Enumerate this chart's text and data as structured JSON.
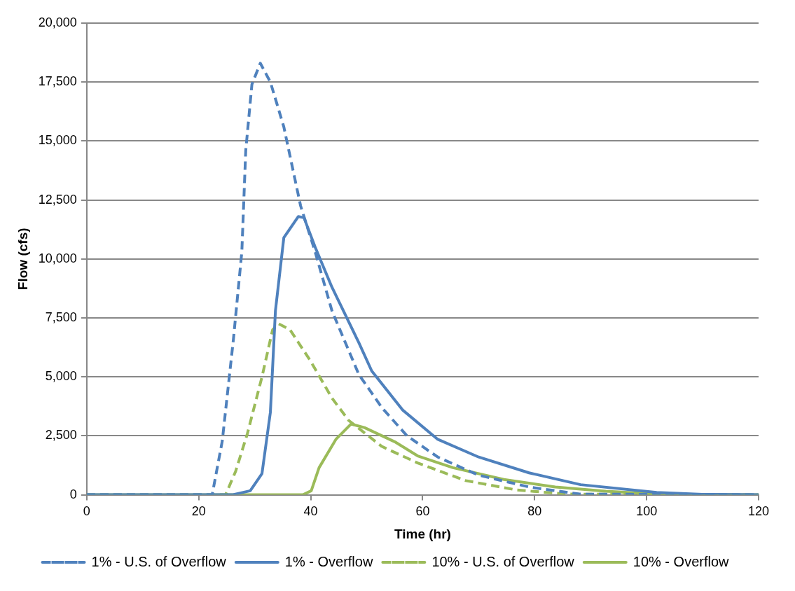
{
  "chart_data": {
    "type": "line",
    "xlabel": "Time (hr)",
    "ylabel": "Flow (cfs)",
    "xlim": [
      0,
      120
    ],
    "xticks": [
      0,
      20,
      40,
      60,
      80,
      100,
      120
    ],
    "ylim": [
      0,
      20000
    ],
    "yticks": [
      {
        "value": 0,
        "label": "0"
      },
      {
        "value": 2500,
        "label": "2,500"
      },
      {
        "value": 5000,
        "label": "5,000"
      },
      {
        "value": 7500,
        "label": "7,500"
      },
      {
        "value": 10000,
        "label": "10,000"
      },
      {
        "value": 12500,
        "label": "12,500"
      },
      {
        "value": 15000,
        "label": "15,000"
      },
      {
        "value": 17500,
        "label": "17,500"
      },
      {
        "value": 20000,
        "label": "20,000"
      }
    ],
    "grid": "y",
    "legend": "bottom",
    "marker": "none",
    "series": [
      {
        "name": "1% - U.S. of Overflow",
        "color": "#4f81bd",
        "line_style": "dashed",
        "x": [
          0,
          22.4,
          24.2,
          26.2,
          27.7,
          28.4,
          29.5,
          31,
          32.8,
          35.2,
          38.2,
          40.8,
          43.8,
          48.6,
          52.7,
          57.2,
          62.7,
          70,
          79,
          88,
          120
        ],
        "values": [
          0,
          0,
          2270,
          6600,
          10300,
          14600,
          17400,
          18300,
          17500,
          15600,
          12250,
          10300,
          7800,
          5100,
          3700,
          2500,
          1600,
          830,
          330,
          30,
          0
        ]
      },
      {
        "name": "1% - Overflow",
        "color": "#4f81bd",
        "line_style": "solid",
        "x": [
          0,
          26,
          29.2,
          31.3,
          32.8,
          33.7,
          35.2,
          37.8,
          38.8,
          40.8,
          43.8,
          48.6,
          50.9,
          56.4,
          62.7,
          70,
          79,
          88.2,
          101.8,
          110,
          120
        ],
        "values": [
          0,
          0,
          170,
          900,
          3500,
          7800,
          10900,
          11800,
          11750,
          10500,
          8800,
          6450,
          5250,
          3600,
          2350,
          1600,
          930,
          430,
          100,
          20,
          0
        ]
      },
      {
        "name": "10% - U.S. of Overflow",
        "color": "#9bbb59",
        "line_style": "dashed",
        "x": [
          0,
          24.8,
          26.6,
          28.7,
          31.3,
          33.2,
          34.3,
          36.3,
          39.9,
          43.8,
          46.8,
          52.7,
          59.1,
          67.7,
          76.9,
          85.9,
          120
        ],
        "values": [
          0,
          0,
          1000,
          2600,
          5000,
          7000,
          7250,
          7000,
          5700,
          4100,
          3150,
          2050,
          1350,
          600,
          200,
          30,
          0
        ]
      },
      {
        "name": "10% - Overflow",
        "color": "#9bbb59",
        "line_style": "solid",
        "x": [
          0,
          38.6,
          40.1,
          41.5,
          44.5,
          47.2,
          49.6,
          55,
          59.1,
          65.4,
          74.5,
          83.7,
          92.7,
          101.8,
          120
        ],
        "values": [
          0,
          0,
          170,
          1150,
          2350,
          3000,
          2850,
          2250,
          1650,
          1150,
          650,
          330,
          150,
          30,
          0
        ]
      }
    ]
  }
}
